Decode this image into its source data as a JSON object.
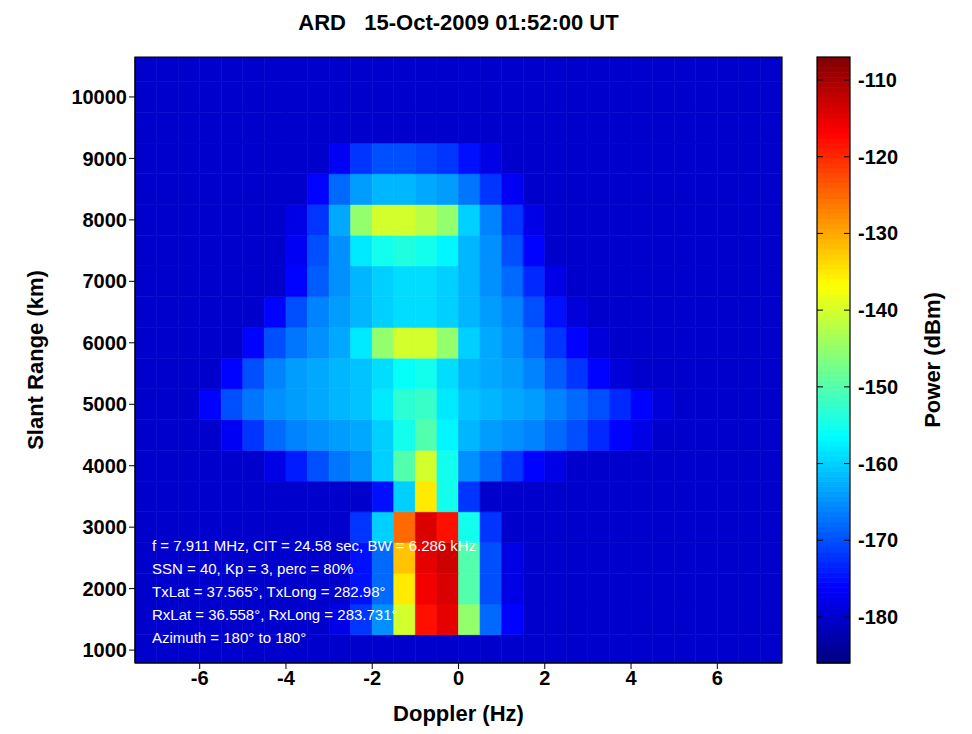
{
  "chart_data": {
    "type": "heatmap",
    "title": "ARD   15-Oct-2009 01:52:00 UT",
    "x_label": "Doppler (Hz)",
    "y_label": "Slant Range (km)",
    "xlim": [
      -7.5,
      7.5
    ],
    "xticks": [
      -6,
      -4,
      -2,
      0,
      2,
      4,
      6
    ],
    "ylim": [
      790,
      10650
    ],
    "yticks": [
      1000,
      2000,
      3000,
      4000,
      5000,
      6000,
      7000,
      8000,
      9000,
      10000
    ],
    "x_edges": [
      -7.5,
      -7,
      -6.5,
      -6,
      -5.5,
      -5,
      -4.5,
      -4,
      -3.5,
      -3,
      -2.5,
      -2,
      -1.5,
      -1,
      -0.5,
      0,
      0.5,
      1,
      1.5,
      2,
      2.5,
      3,
      3.5,
      4,
      4.5,
      5,
      5.5,
      6,
      6.5,
      7,
      7.5
    ],
    "y_edges": [
      790,
      1250,
      1750,
      2250,
      2750,
      3250,
      3750,
      4250,
      4750,
      5250,
      5750,
      6250,
      6750,
      7250,
      7750,
      8250,
      8750,
      9250,
      9750,
      10250,
      10650
    ],
    "cells": [
      [
        -180,
        -180,
        -180,
        -180,
        -180,
        -180,
        -180,
        -180,
        -180,
        -180,
        -180,
        -180,
        -180,
        -180,
        -180,
        -180,
        -180,
        -180,
        -180,
        -180,
        -180,
        -180,
        -180,
        -180,
        -180,
        -180,
        -180,
        -180,
        -180,
        -180
      ],
      [
        -180,
        -180,
        -180,
        -180,
        -180,
        -180,
        -180,
        -180,
        -180,
        -178,
        -172,
        -165,
        -140,
        -118,
        -115,
        -145,
        -168,
        -176,
        -180,
        -180,
        -180,
        -180,
        -180,
        -180,
        -180,
        -180,
        -180,
        -180,
        -180,
        -180
      ],
      [
        -180,
        -180,
        -180,
        -180,
        -180,
        -180,
        -180,
        -180,
        -180,
        -180,
        -175,
        -168,
        -135,
        -116,
        -114,
        -150,
        -170,
        -178,
        -180,
        -180,
        -180,
        -180,
        -180,
        -180,
        -180,
        -180,
        -180,
        -180,
        -180,
        -180
      ],
      [
        -180,
        -180,
        -180,
        -180,
        -180,
        -180,
        -180,
        -180,
        -180,
        -180,
        -175,
        -168,
        -132,
        -115,
        -113,
        -150,
        -170,
        -178,
        -180,
        -180,
        -180,
        -180,
        -180,
        -180,
        -180,
        -180,
        -180,
        -180,
        -180,
        -180
      ],
      [
        -180,
        -180,
        -180,
        -180,
        -180,
        -180,
        -180,
        -180,
        -180,
        -180,
        -172,
        -160,
        -125,
        -114,
        -118,
        -155,
        -172,
        -180,
        -180,
        -180,
        -180,
        -180,
        -180,
        -180,
        -180,
        -180,
        -180,
        -180,
        -180,
        -180
      ],
      [
        -180,
        -180,
        -180,
        -180,
        -180,
        -180,
        -180,
        -180,
        -180,
        -180,
        -180,
        -175,
        -160,
        -135,
        -155,
        -172,
        -180,
        -180,
        -180,
        -180,
        -180,
        -180,
        -180,
        -180,
        -180,
        -180,
        -180,
        -180,
        -180,
        -180
      ],
      [
        -180,
        -180,
        -180,
        -180,
        -180,
        -180,
        -178,
        -174,
        -170,
        -167,
        -165,
        -160,
        -150,
        -140,
        -155,
        -165,
        -168,
        -172,
        -176,
        -178,
        -180,
        -180,
        -180,
        -180,
        -180,
        -180,
        -180,
        -180,
        -180,
        -180
      ],
      [
        -180,
        -180,
        -180,
        -180,
        -177,
        -172,
        -168,
        -166,
        -165,
        -164,
        -163,
        -160,
        -155,
        -150,
        -157,
        -162,
        -164,
        -165,
        -166,
        -168,
        -170,
        -173,
        -176,
        -178,
        -180,
        -180,
        -180,
        -180,
        -180,
        -180
      ],
      [
        -180,
        -180,
        -180,
        -176,
        -170,
        -167,
        -165,
        -164,
        -163,
        -162,
        -161,
        -158,
        -153,
        -152,
        -158,
        -161,
        -162,
        -163,
        -164,
        -166,
        -168,
        -170,
        -173,
        -176,
        -179,
        -180,
        -180,
        -180,
        -180,
        -180
      ],
      [
        -180,
        -180,
        -180,
        -180,
        -176,
        -170,
        -166,
        -164,
        -163,
        -162,
        -161,
        -159,
        -156,
        -155,
        -159,
        -162,
        -163,
        -164,
        -166,
        -169,
        -172,
        -176,
        -179,
        -180,
        -180,
        -180,
        -180,
        -180,
        -180,
        -180
      ],
      [
        -180,
        -180,
        -180,
        -180,
        -180,
        -176,
        -170,
        -167,
        -165,
        -163,
        -158,
        -145,
        -140,
        -140,
        -145,
        -160,
        -163,
        -165,
        -168,
        -172,
        -176,
        -179,
        -180,
        -180,
        -180,
        -180,
        -180,
        -180,
        -180,
        -180
      ],
      [
        -180,
        -180,
        -180,
        -180,
        -180,
        -180,
        -176,
        -170,
        -166,
        -164,
        -162,
        -160,
        -159,
        -159,
        -160,
        -162,
        -164,
        -166,
        -170,
        -175,
        -179,
        -180,
        -180,
        -180,
        -180,
        -180,
        -180,
        -180,
        -180,
        -180
      ],
      [
        -180,
        -180,
        -180,
        -180,
        -180,
        -180,
        -180,
        -176,
        -169,
        -165,
        -162,
        -160,
        -159,
        -159,
        -160,
        -162,
        -165,
        -168,
        -173,
        -178,
        -180,
        -180,
        -180,
        -180,
        -180,
        -180,
        -180,
        -180,
        -180,
        -180
      ],
      [
        -180,
        -180,
        -180,
        -180,
        -180,
        -180,
        -180,
        -177,
        -170,
        -165,
        -158,
        -155,
        -154,
        -155,
        -157,
        -162,
        -165,
        -170,
        -176,
        -180,
        -180,
        -180,
        -180,
        -180,
        -180,
        -180,
        -180,
        -180,
        -180,
        -180
      ],
      [
        -180,
        -180,
        -180,
        -180,
        -180,
        -180,
        -180,
        -178,
        -172,
        -163,
        -145,
        -140,
        -140,
        -142,
        -145,
        -160,
        -166,
        -172,
        -178,
        -180,
        -180,
        -180,
        -180,
        -180,
        -180,
        -180,
        -180,
        -180,
        -180,
        -180
      ],
      [
        -180,
        -180,
        -180,
        -180,
        -180,
        -180,
        -180,
        -180,
        -176,
        -168,
        -164,
        -162,
        -162,
        -163,
        -164,
        -167,
        -172,
        -177,
        -180,
        -180,
        -180,
        -180,
        -180,
        -180,
        -180,
        -180,
        -180,
        -180,
        -180,
        -180
      ],
      [
        -180,
        -180,
        -180,
        -180,
        -180,
        -180,
        -180,
        -180,
        -180,
        -177,
        -172,
        -170,
        -170,
        -171,
        -172,
        -175,
        -178,
        -180,
        -180,
        -180,
        -180,
        -180,
        -180,
        -180,
        -180,
        -180,
        -180,
        -180,
        -180,
        -180
      ],
      [
        -180,
        -180,
        -180,
        -180,
        -180,
        -180,
        -180,
        -180,
        -180,
        -180,
        -180,
        -180,
        -180,
        -180,
        -180,
        -180,
        -180,
        -180,
        -180,
        -180,
        -180,
        -180,
        -180,
        -180,
        -180,
        -180,
        -180,
        -180,
        -180,
        -180
      ],
      [
        -180,
        -180,
        -180,
        -180,
        -180,
        -180,
        -180,
        -180,
        -180,
        -180,
        -180,
        -180,
        -180,
        -180,
        -180,
        -180,
        -180,
        -180,
        -180,
        -180,
        -180,
        -180,
        -180,
        -180,
        -180,
        -180,
        -180,
        -180,
        -180,
        -180
      ],
      [
        -180,
        -180,
        -180,
        -180,
        -180,
        -180,
        -180,
        -180,
        -180,
        -180,
        -180,
        -180,
        -180,
        -180,
        -180,
        -180,
        -180,
        -180,
        -180,
        -180,
        -180,
        -180,
        -180,
        -180,
        -180,
        -180,
        -180,
        -180,
        -180,
        -180
      ]
    ],
    "colorbar_label": "Power (dBm)",
    "colorbar_lim": [
      -186,
      -107
    ],
    "colorbar_ticks": [
      -180,
      -170,
      -160,
      -150,
      -140,
      -130,
      -120,
      -110
    ],
    "annotations": [
      "f = 7.911 MHz, CIT = 24.58 sec, BW = 6.286 kHz",
      "SSN = 40, Kp = 3, perc = 80%",
      "TxLat = 37.565°, TxLong = 282.98°",
      "RxLat = 36.558°, RxLong = 283.731°",
      "Azimuth = 180° to 180°"
    ]
  }
}
